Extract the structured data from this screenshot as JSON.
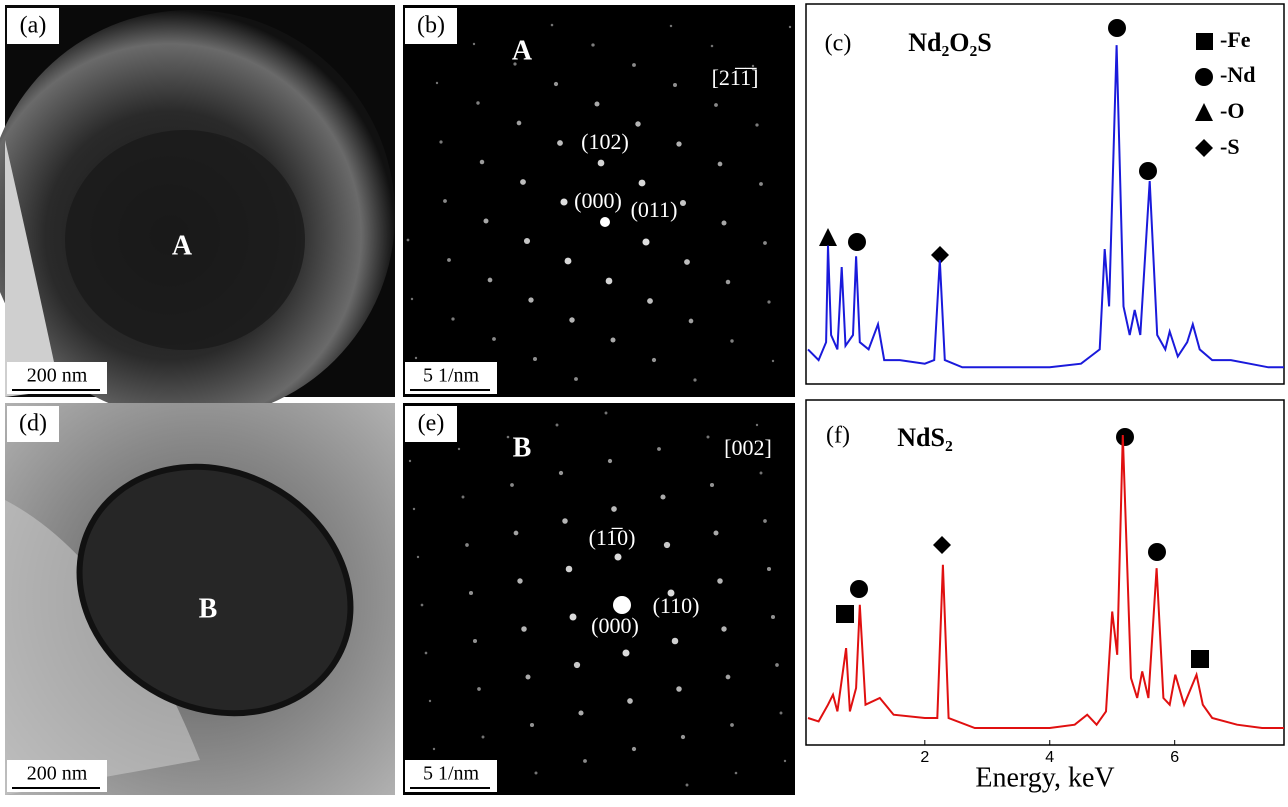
{
  "panels": {
    "a": {
      "label": "(a)",
      "marker": "A",
      "scale_bar": "200 nm"
    },
    "b": {
      "label": "(b)",
      "marker": "A",
      "zone_axis": "[21̅1̅]",
      "spots": [
        "(102)",
        "(000)",
        "(011)"
      ],
      "scale_bar": "5 1/nm"
    },
    "d": {
      "label": "(d)",
      "marker": "B",
      "scale_bar": "200 nm"
    },
    "e": {
      "label": "(e)",
      "marker": "B",
      "zone_axis": "[002]",
      "spots": [
        "(11̅0)",
        "(000)",
        "(110)"
      ],
      "scale_bar": "5 1/nm"
    }
  },
  "chart_data": [
    {
      "type": "line",
      "label": "(c)",
      "title": "Nd₂O₂S",
      "color": "#1a1adb",
      "legend": [
        "-Fe",
        "-Nd",
        "-O",
        "-S"
      ],
      "x": [
        0.13,
        0.3,
        0.42,
        0.45,
        0.5,
        0.6,
        0.67,
        0.73,
        0.85,
        0.9,
        0.96,
        1.1,
        1.25,
        1.35,
        1.6,
        2.0,
        2.15,
        2.24,
        2.32,
        2.6,
        3.0,
        3.5,
        4.0,
        4.5,
        4.65,
        4.8,
        4.88,
        4.95,
        5.07,
        5.18,
        5.28,
        5.36,
        5.45,
        5.6,
        5.72,
        5.85,
        5.92,
        6.05,
        6.2,
        6.29,
        6.4,
        6.6,
        6.9,
        7.2,
        7.5,
        7.75
      ],
      "values": [
        8,
        5,
        10,
        37,
        12,
        8,
        31,
        9,
        12,
        34,
        10,
        8,
        15,
        5,
        5,
        4,
        5,
        33,
        5,
        3,
        3,
        3,
        3,
        4,
        6,
        8,
        36,
        20,
        93,
        20,
        12,
        19,
        12,
        55,
        12,
        8,
        13,
        6,
        10,
        15,
        8,
        5,
        5,
        4,
        3,
        3
      ],
      "xlim": [
        0.13,
        7.75
      ],
      "ylim": [
        0,
        100
      ]
    },
    {
      "type": "line",
      "label": "(f)",
      "title": "NdS₂",
      "color": "#e01010",
      "xlabel": "Energy, keV",
      "x": [
        0.13,
        0.3,
        0.45,
        0.53,
        0.6,
        0.74,
        0.8,
        0.9,
        0.96,
        1.05,
        1.28,
        1.5,
        2.0,
        2.2,
        2.29,
        2.38,
        2.8,
        3.5,
        4.0,
        4.4,
        4.6,
        4.75,
        4.9,
        5.0,
        5.08,
        5.17,
        5.3,
        5.4,
        5.48,
        5.58,
        5.71,
        5.82,
        5.92,
        6.01,
        6.15,
        6.35,
        6.45,
        6.6,
        7.0,
        7.4,
        7.75
      ],
      "values": [
        6,
        5,
        10,
        13,
        8,
        27,
        8,
        15,
        40,
        10,
        12,
        7,
        6,
        6,
        52,
        6,
        3,
        3,
        3,
        4,
        7,
        4,
        8,
        38,
        25,
        91,
        18,
        12,
        20,
        12,
        51,
        12,
        10,
        19,
        10,
        19,
        10,
        6,
        4,
        3,
        3
      ],
      "xlim": [
        0.13,
        7.75
      ],
      "ylim": [
        0,
        100
      ],
      "xticks": [
        2,
        4,
        6
      ]
    }
  ]
}
